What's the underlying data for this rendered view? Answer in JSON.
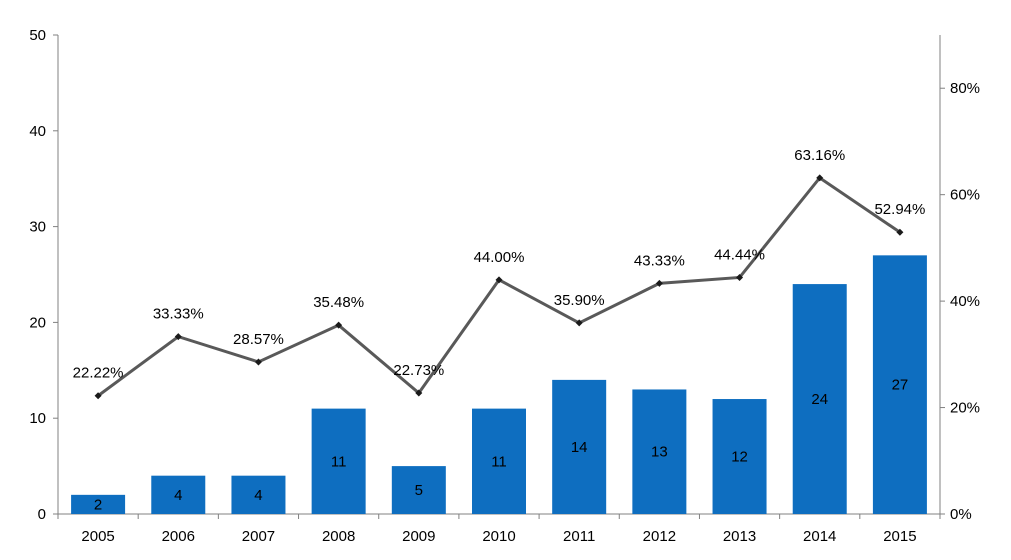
{
  "chart_data": {
    "type": "bar",
    "categories": [
      "2005",
      "2006",
      "2007",
      "2008",
      "2009",
      "2010",
      "2011",
      "2012",
      "2013",
      "2014",
      "2015"
    ],
    "series": [
      {
        "type": "bar",
        "axis": "left",
        "values": [
          2,
          4,
          4,
          11,
          5,
          11,
          14,
          13,
          12,
          24,
          27
        ],
        "labels": [
          "2",
          "4",
          "4",
          "11",
          "5",
          "11",
          "14",
          "13",
          "12",
          "24",
          "27"
        ],
        "color": "#0E6EC0"
      },
      {
        "type": "line",
        "axis": "right",
        "values": [
          22.22,
          33.33,
          28.57,
          35.48,
          22.73,
          44.0,
          35.9,
          43.33,
          44.44,
          63.16,
          52.94
        ],
        "labels": [
          "22.22%",
          "33.33%",
          "28.57%",
          "35.48%",
          "22.73%",
          "44.00%",
          "35.90%",
          "43.33%",
          "44.44%",
          "63.16%",
          "52.94%"
        ],
        "color": "#595959"
      }
    ],
    "y_left": {
      "range": [
        0,
        50
      ],
      "ticks": [
        0,
        10,
        20,
        30,
        40,
        50
      ],
      "tick_labels": [
        "0",
        "10",
        "20",
        "30",
        "40",
        "50"
      ]
    },
    "y_right": {
      "range": [
        0,
        90
      ],
      "ticks": [
        0,
        20,
        40,
        60,
        80
      ],
      "tick_labels": [
        "0%",
        "20%",
        "40%",
        "60%",
        "80%"
      ]
    },
    "grid": false,
    "legend": "none"
  }
}
